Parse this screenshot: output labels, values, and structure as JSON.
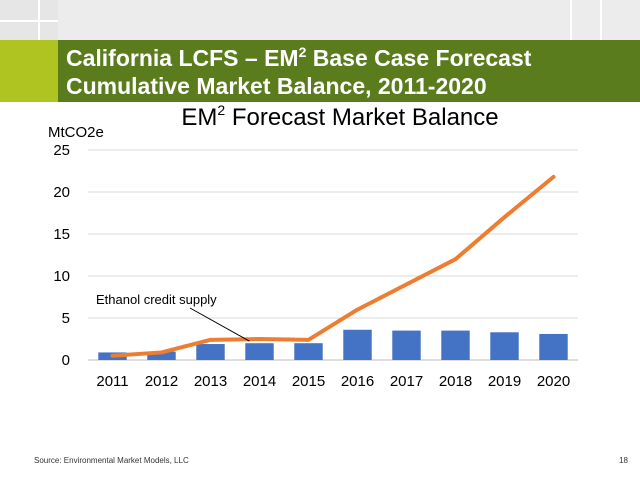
{
  "slide": {
    "title_line1_prefix": "California LCFS –  EM",
    "title_sup": "2",
    "title_line1_suffix": " Base Case Forecast",
    "title_line2": "Cumulative Market Balance, 2011-2020",
    "source": "Source: Environmental Market Models, LLC",
    "page_number": "18"
  },
  "colors": {
    "title_band": "#5b7c1d",
    "title_accent": "#b0c421",
    "bar": "#4472c4",
    "line": "#ed7d31"
  },
  "chart_data": {
    "type": "bar",
    "title_prefix": "EM",
    "title_sup": "2",
    "title_suffix": " Forecast Market Balance",
    "ylabel": "MtCO2e",
    "ylim": [
      0,
      25
    ],
    "yticks": [
      "0",
      "5",
      "10",
      "15",
      "20",
      "25"
    ],
    "grid": true,
    "categories": [
      "2011",
      "2012",
      "2013",
      "2014",
      "2015",
      "2016",
      "2017",
      "2018",
      "2019",
      "2020"
    ],
    "series": [
      {
        "name": "Ethanol credit supply",
        "kind": "bar",
        "values": [
          0.9,
          1.0,
          1.9,
          2.0,
          2.0,
          3.6,
          3.5,
          3.5,
          3.3,
          3.1
        ]
      },
      {
        "kind": "line",
        "values": [
          0.5,
          0.9,
          2.4,
          2.5,
          2.4,
          6.0,
          9.0,
          12.0,
          17.0,
          21.8
        ]
      }
    ],
    "annotation": "Ethanol credit supply"
  }
}
